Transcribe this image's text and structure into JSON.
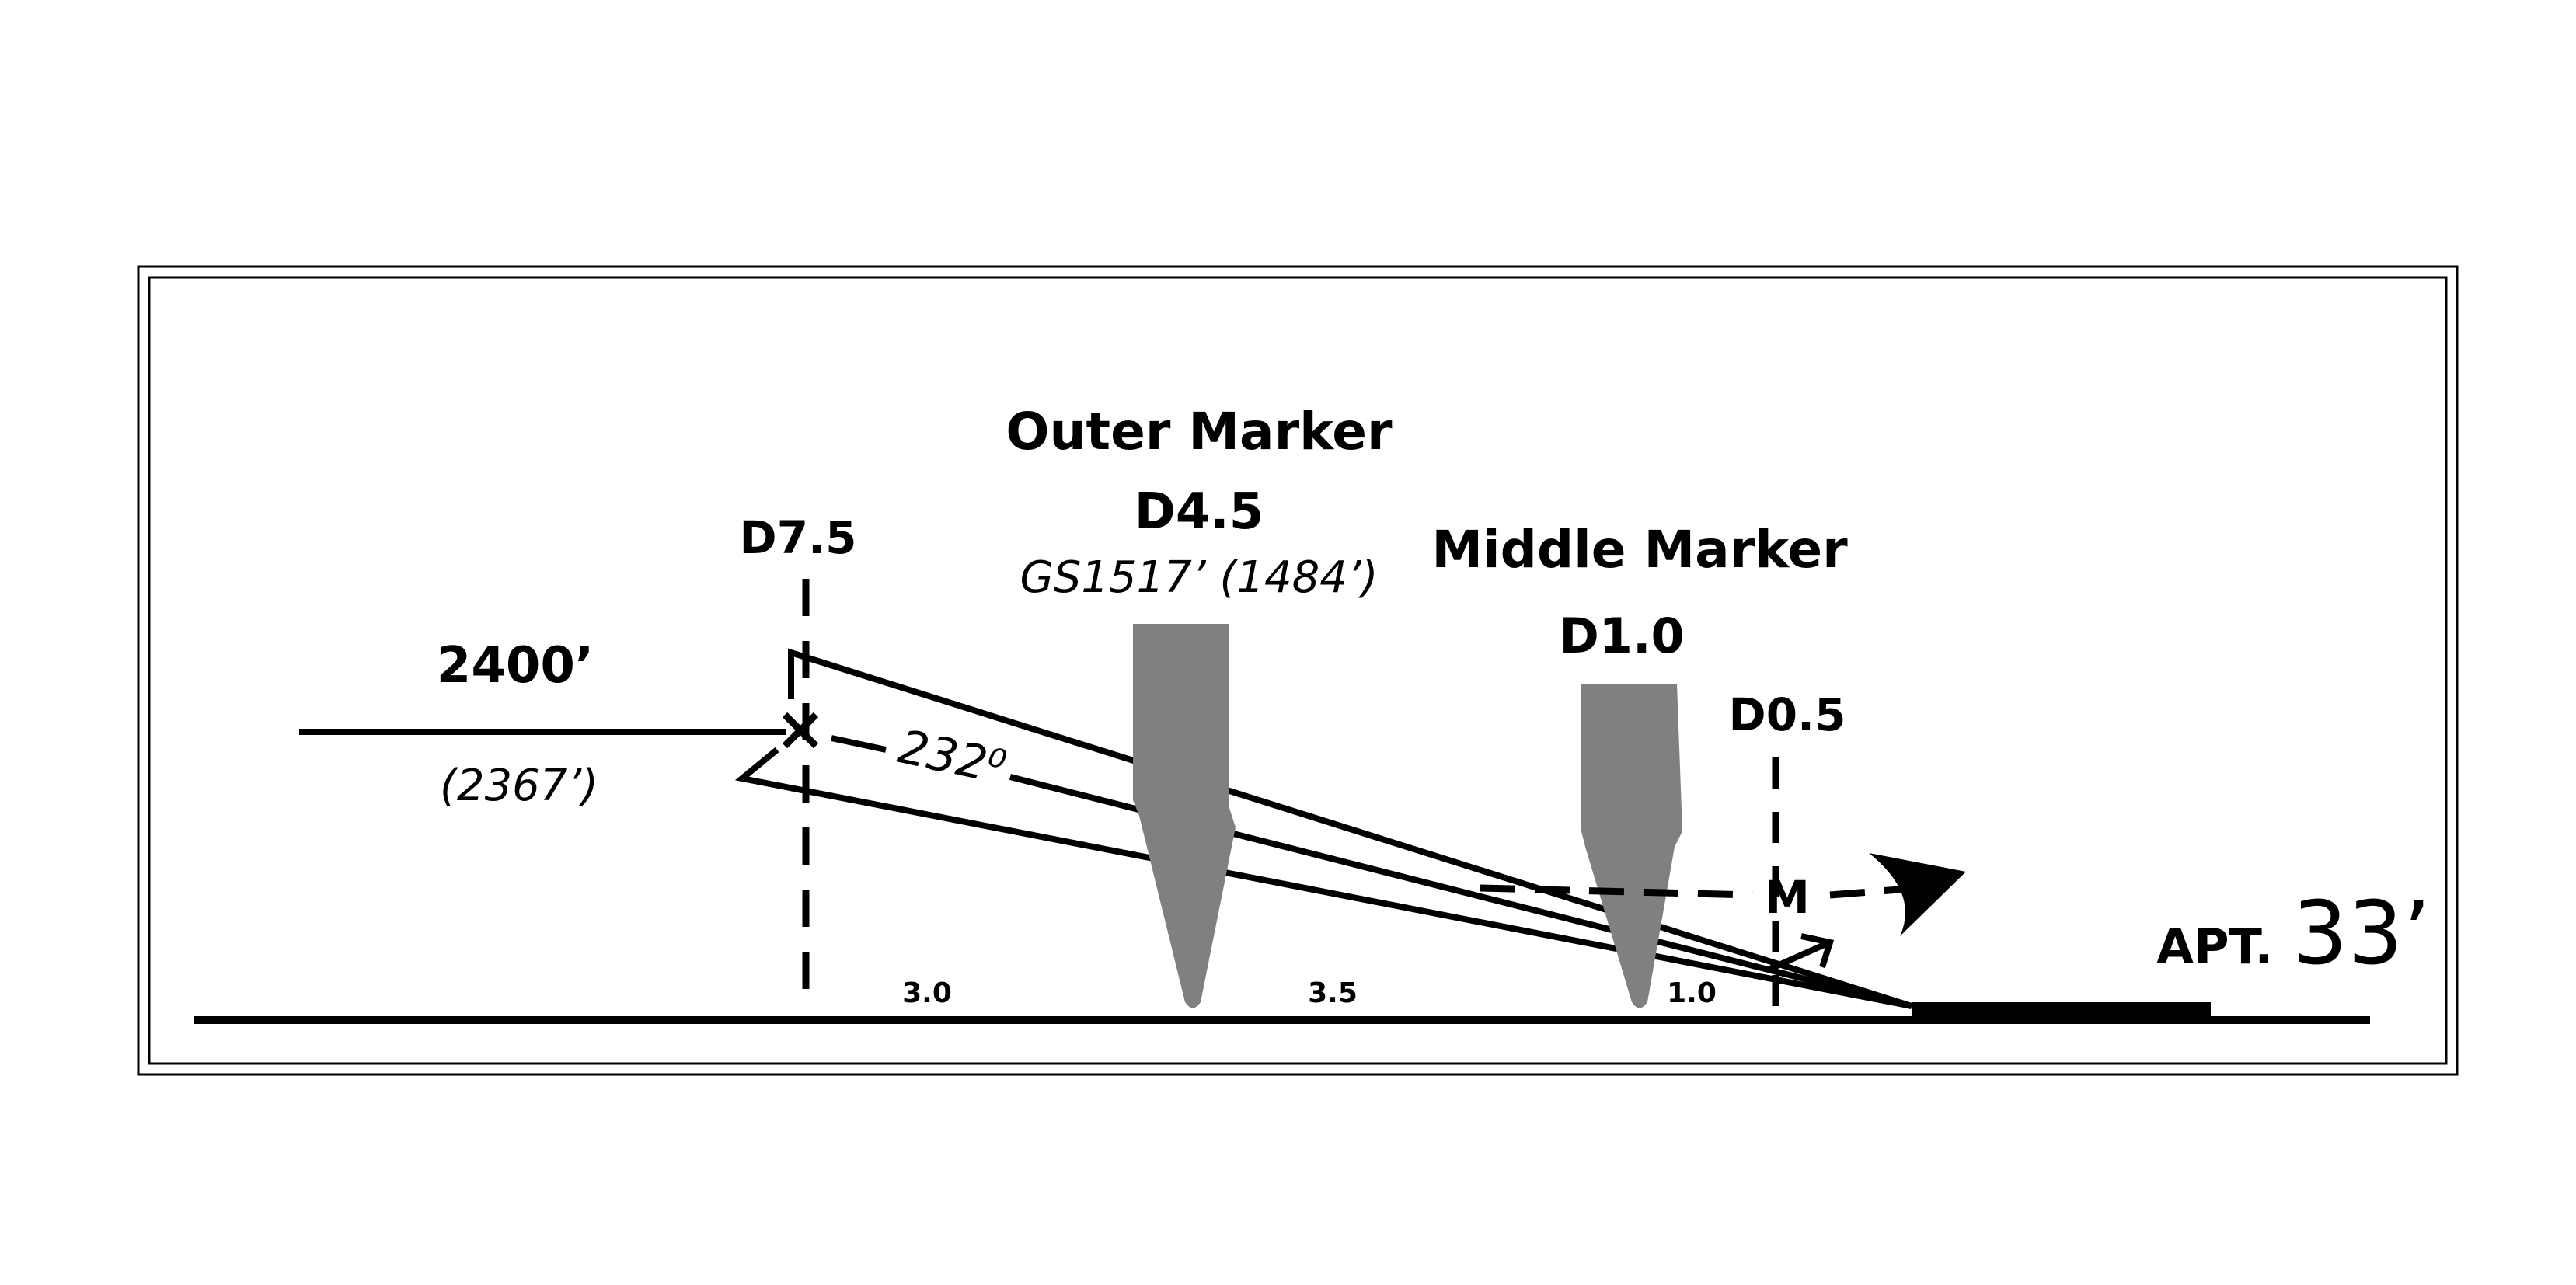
{
  "altitude": {
    "value": "2400’",
    "msa_value": "(2367’)"
  },
  "fix": {
    "label": "D7.5"
  },
  "course": {
    "label": "232⁰"
  },
  "outer_marker": {
    "title": "Outer Marker",
    "dme": "D4.5",
    "glideslope": "GS1517’ (1484’)"
  },
  "middle_marker": {
    "title": "Middle Marker",
    "dme": "D1.0"
  },
  "map": {
    "dme": "D0.5",
    "marker": "M"
  },
  "airport": {
    "prefix": "APT.",
    "elevation": "33’"
  },
  "segments": [
    "3.0",
    "3.5",
    "1.0"
  ],
  "colors": {
    "line": "#000000",
    "marker_beacon": "#808080",
    "background": "#ffffff"
  }
}
